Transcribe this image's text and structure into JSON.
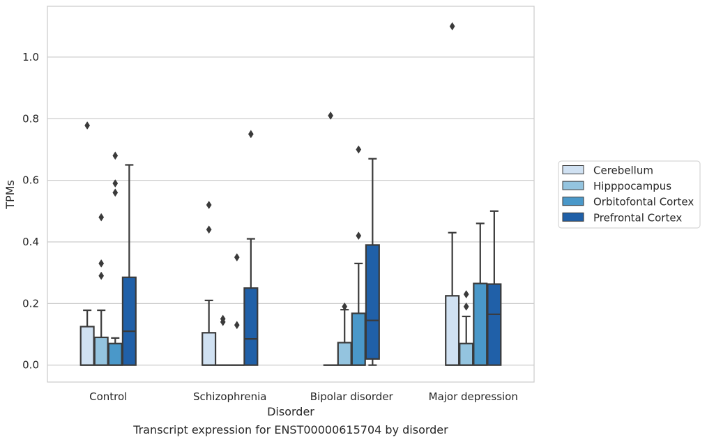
{
  "chart_data": {
    "type": "box",
    "xlabel": "Disorder",
    "ylabel": "TPMs",
    "caption": "Transcript expression for ENST00000615704 by disorder",
    "ylim": [
      -0.055,
      1.165
    ],
    "yticks": [
      0.0,
      0.2,
      0.4,
      0.6,
      0.8,
      1.0
    ],
    "ytick_labels": [
      "0.0",
      "0.2",
      "0.4",
      "0.6",
      "0.8",
      "1.0"
    ],
    "grid": true,
    "legend_position": "right",
    "categories": [
      "Control",
      "Schizophrenia",
      "Bipolar disorder",
      "Major depression"
    ],
    "series": [
      {
        "name": "Cerebellum",
        "color": "#d0e1f2",
        "boxes": [
          {
            "whislo": 0.0,
            "q1": 0.0,
            "med": 0.0,
            "q3": 0.125,
            "whishi": 0.178,
            "fliers": [
              0.778
            ]
          },
          {
            "whislo": 0.0,
            "q1": 0.0,
            "med": 0.0,
            "q3": 0.105,
            "whishi": 0.21,
            "fliers": [
              0.44,
              0.52
            ]
          },
          {
            "whislo": 0.0,
            "q1": 0.0,
            "med": 0.0,
            "q3": 0.0,
            "whishi": 0.0,
            "fliers": [
              0.81
            ]
          },
          {
            "whislo": 0.0,
            "q1": 0.0,
            "med": 0.0,
            "q3": 0.225,
            "whishi": 0.43,
            "fliers": [
              1.1
            ]
          }
        ]
      },
      {
        "name": "Hipppocampus",
        "color": "#94c4df",
        "boxes": [
          {
            "whislo": 0.0,
            "q1": 0.0,
            "med": 0.0,
            "q3": 0.09,
            "whishi": 0.178,
            "fliers": [
              0.29,
              0.33,
              0.48
            ]
          },
          {
            "whislo": 0.0,
            "q1": 0.0,
            "med": 0.0,
            "q3": 0.0,
            "whishi": 0.0,
            "fliers": [
              0.14,
              0.15
            ]
          },
          {
            "whislo": 0.0,
            "q1": 0.0,
            "med": 0.0,
            "q3": 0.073,
            "whishi": 0.18,
            "fliers": [
              0.19
            ]
          },
          {
            "whislo": 0.0,
            "q1": 0.0,
            "med": 0.0,
            "q3": 0.07,
            "whishi": 0.158,
            "fliers": [
              0.19,
              0.23
            ]
          }
        ]
      },
      {
        "name": "Orbitofontal Cortex",
        "color": "#4a98c9",
        "boxes": [
          {
            "whislo": 0.0,
            "q1": 0.0,
            "med": 0.0,
            "q3": 0.07,
            "whishi": 0.088,
            "fliers": [
              0.56,
              0.59,
              0.68
            ]
          },
          {
            "whislo": 0.0,
            "q1": 0.0,
            "med": 0.0,
            "q3": 0.0,
            "whishi": 0.0,
            "fliers": [
              0.13,
              0.35
            ]
          },
          {
            "whislo": 0.0,
            "q1": 0.0,
            "med": 0.0,
            "q3": 0.168,
            "whishi": 0.33,
            "fliers": [
              0.42,
              0.7
            ]
          },
          {
            "whislo": 0.0,
            "q1": 0.0,
            "med": 0.0,
            "q3": 0.265,
            "whishi": 0.46,
            "fliers": []
          }
        ]
      },
      {
        "name": "Prefrontal Cortex",
        "color": "#2060a8",
        "boxes": [
          {
            "whislo": 0.0,
            "q1": 0.0,
            "med": 0.11,
            "q3": 0.285,
            "whishi": 0.65,
            "fliers": []
          },
          {
            "whislo": 0.0,
            "q1": 0.0,
            "med": 0.085,
            "q3": 0.25,
            "whishi": 0.41,
            "fliers": [
              0.75
            ]
          },
          {
            "whislo": 0.0,
            "q1": 0.02,
            "med": 0.145,
            "q3": 0.39,
            "whishi": 0.67,
            "fliers": []
          },
          {
            "whislo": 0.0,
            "q1": 0.0,
            "med": 0.165,
            "q3": 0.263,
            "whishi": 0.5,
            "fliers": []
          }
        ]
      }
    ]
  }
}
